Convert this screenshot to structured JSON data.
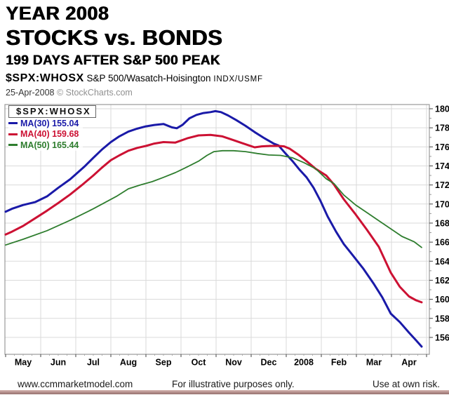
{
  "title_block": {
    "line1": "YEAR 2008",
    "line2": "STOCKS vs. BONDS",
    "line3": "199 DAYS AFTER S&P 500 PEAK"
  },
  "chart_header": {
    "symbol": "$SPX:WHOSX",
    "description": "S&P 500/Wasatch-Hoisington",
    "exchange": "INDX/USMF",
    "date": "25-Apr-2008",
    "source": "© StockCharts.com"
  },
  "legend": {
    "box_title": "$SPX:WHOSX",
    "items": [
      {
        "label": "MA(30) 155.04",
        "color": "#1a1aa8"
      },
      {
        "label": "MA(40) 159.68",
        "color": "#cc1133"
      },
      {
        "label": "MA(50) 165.44",
        "color": "#2e7d2e"
      }
    ]
  },
  "footer": {
    "left": "www.ccmmarketmodel.com",
    "center": "For illustrative purposes only.",
    "right": "Use at own risk."
  },
  "chart_data": {
    "type": "line",
    "title": "STOCKS vs. BONDS — $SPX:WHOSX ratio, 199 days after S&P 500 peak",
    "xlabel": "",
    "ylabel": "",
    "grid": true,
    "legend_position": "top-left",
    "ylim": [
      154.3,
      180.4
    ],
    "x_axis": {
      "labels": [
        "May",
        "Jun",
        "Jul",
        "Aug",
        "Sep",
        "Oct",
        "Nov",
        "Dec",
        "2008",
        "Feb",
        "Mar",
        "Apr"
      ],
      "bold_label": "2008"
    },
    "y_axis": {
      "ticks": [
        180,
        178,
        176,
        174,
        172,
        170,
        168,
        166,
        164,
        162,
        160,
        158,
        156
      ]
    },
    "series": [
      {
        "name": "MA(30)",
        "last_value": 155.04,
        "color": "#1a1aa8",
        "width": 3,
        "points": [
          [
            0,
            169.2
          ],
          [
            0.18,
            169.5
          ],
          [
            0.5,
            169.9
          ],
          [
            0.84,
            170.2
          ],
          [
            1.18,
            170.8
          ],
          [
            1.5,
            171.7
          ],
          [
            1.84,
            172.6
          ],
          [
            2.24,
            173.9
          ],
          [
            2.5,
            174.85
          ],
          [
            2.74,
            175.7
          ],
          [
            3,
            176.5
          ],
          [
            3.24,
            177.1
          ],
          [
            3.5,
            177.6
          ],
          [
            3.74,
            177.9
          ],
          [
            4,
            178.15
          ],
          [
            4.24,
            178.3
          ],
          [
            4.5,
            178.4
          ],
          [
            4.74,
            178.05
          ],
          [
            4.88,
            177.95
          ],
          [
            5.04,
            178.3
          ],
          [
            5.24,
            179
          ],
          [
            5.44,
            179.35
          ],
          [
            5.64,
            179.55
          ],
          [
            5.84,
            179.65
          ],
          [
            5.98,
            179.75
          ],
          [
            6.14,
            179.65
          ],
          [
            6.34,
            179.3
          ],
          [
            6.58,
            178.8
          ],
          [
            6.84,
            178.2
          ],
          [
            7.1,
            177.55
          ],
          [
            7.38,
            176.9
          ],
          [
            7.64,
            176.35
          ],
          [
            7.78,
            176.15
          ],
          [
            7.98,
            175.3
          ],
          [
            8.18,
            174.5
          ],
          [
            8.38,
            173.6
          ],
          [
            8.58,
            172.8
          ],
          [
            8.78,
            171.7
          ],
          [
            8.98,
            170.3
          ],
          [
            9.18,
            168.7
          ],
          [
            9.42,
            167.1
          ],
          [
            9.64,
            165.8
          ],
          [
            9.88,
            164.7
          ],
          [
            10.2,
            163.2
          ],
          [
            10.5,
            161.6
          ],
          [
            10.74,
            160.2
          ],
          [
            10.98,
            158.5
          ],
          [
            11.24,
            157.6
          ],
          [
            11.5,
            156.5
          ],
          [
            11.7,
            155.7
          ],
          [
            11.86,
            155.04
          ]
        ]
      },
      {
        "name": "MA(40)",
        "last_value": 159.68,
        "color": "#cc1133",
        "width": 3,
        "points": [
          [
            0,
            166.8
          ],
          [
            0.18,
            167.1
          ],
          [
            0.5,
            167.7
          ],
          [
            0.84,
            168.5
          ],
          [
            1.18,
            169.3
          ],
          [
            1.5,
            170.1
          ],
          [
            1.84,
            171
          ],
          [
            2.18,
            172
          ],
          [
            2.5,
            173
          ],
          [
            2.74,
            173.8
          ],
          [
            3,
            174.6
          ],
          [
            3.24,
            175.1
          ],
          [
            3.5,
            175.6
          ],
          [
            3.76,
            175.9
          ],
          [
            4,
            176.1
          ],
          [
            4.24,
            176.35
          ],
          [
            4.5,
            176.5
          ],
          [
            4.84,
            176.45
          ],
          [
            5.18,
            176.9
          ],
          [
            5.5,
            177.2
          ],
          [
            5.84,
            177.25
          ],
          [
            6.18,
            177.1
          ],
          [
            6.5,
            176.7
          ],
          [
            6.74,
            176.4
          ],
          [
            6.94,
            176.15
          ],
          [
            7.1,
            175.95
          ],
          [
            7.3,
            176.05
          ],
          [
            7.54,
            176.1
          ],
          [
            7.78,
            176.1
          ],
          [
            7.94,
            176.05
          ],
          [
            8.1,
            175.8
          ],
          [
            8.34,
            175.2
          ],
          [
            8.58,
            174.5
          ],
          [
            8.84,
            173.7
          ],
          [
            9.14,
            173
          ],
          [
            9.36,
            172.05
          ],
          [
            9.64,
            170.5
          ],
          [
            9.98,
            168.9
          ],
          [
            10.3,
            167.3
          ],
          [
            10.64,
            165.5
          ],
          [
            10.98,
            162.8
          ],
          [
            11.24,
            161.3
          ],
          [
            11.5,
            160.3
          ],
          [
            11.7,
            159.9
          ],
          [
            11.86,
            159.68
          ]
        ]
      },
      {
        "name": "MA(50)",
        "last_value": 165.44,
        "color": "#2e7d2e",
        "width": 1.8,
        "points": [
          [
            0,
            165.7
          ],
          [
            0.5,
            166.3
          ],
          [
            1.18,
            167.2
          ],
          [
            1.84,
            168.3
          ],
          [
            2.5,
            169.5
          ],
          [
            3.18,
            170.85
          ],
          [
            3.5,
            171.6
          ],
          [
            3.84,
            172
          ],
          [
            4.18,
            172.35
          ],
          [
            4.5,
            172.8
          ],
          [
            4.84,
            173.3
          ],
          [
            5.18,
            173.9
          ],
          [
            5.5,
            174.5
          ],
          [
            5.74,
            175.1
          ],
          [
            5.94,
            175.5
          ],
          [
            6.18,
            175.6
          ],
          [
            6.5,
            175.6
          ],
          [
            6.84,
            175.5
          ],
          [
            7.18,
            175.3
          ],
          [
            7.5,
            175.15
          ],
          [
            7.84,
            175.1
          ],
          [
            8.18,
            174.85
          ],
          [
            8.5,
            174.35
          ],
          [
            8.84,
            173.7
          ],
          [
            9.14,
            172.65
          ],
          [
            9.36,
            172.15
          ],
          [
            9.64,
            170.95
          ],
          [
            9.98,
            169.9
          ],
          [
            10.3,
            169.1
          ],
          [
            10.64,
            168.25
          ],
          [
            10.98,
            167.4
          ],
          [
            11.3,
            166.6
          ],
          [
            11.64,
            166.05
          ],
          [
            11.86,
            165.44
          ]
        ]
      }
    ]
  }
}
